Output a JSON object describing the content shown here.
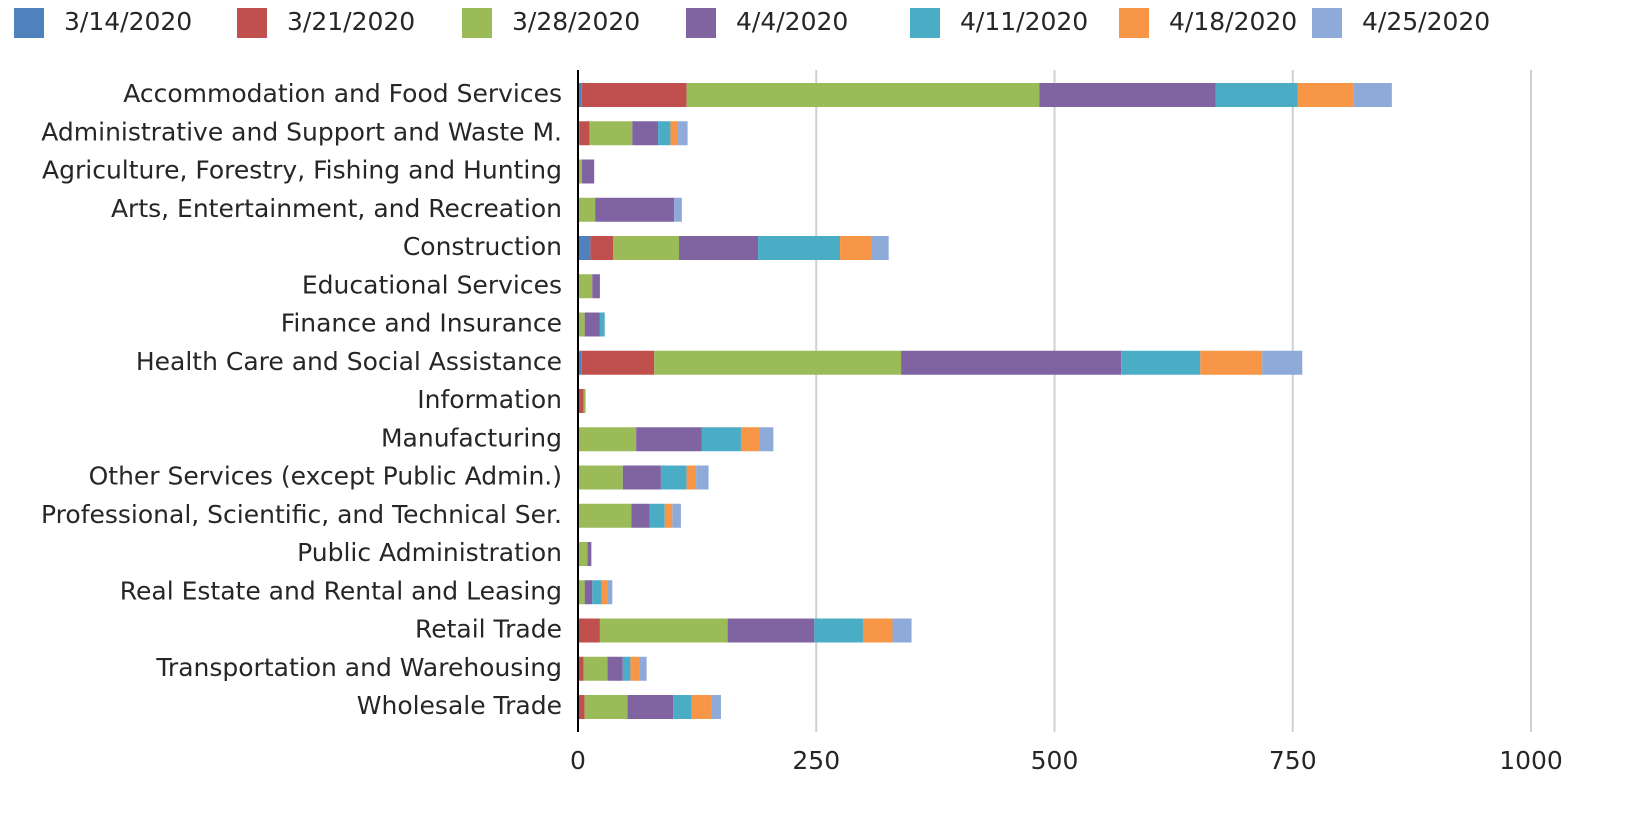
{
  "chart_data": {
    "type": "stacked_barh",
    "categories": [
      "Accommodation and Food Services",
      "Administrative and Support and Waste M.",
      "Agriculture, Forestry, Fishing and Hunting",
      "Arts, Entertainment, and Recreation",
      "Construction",
      "Educational Services",
      "Finance and Insurance",
      "Health Care and Social Assistance",
      "Information",
      "Manufacturing",
      "Other Services (except Public Admin.)",
      "Professional, Scientific, and Technical Ser.",
      "Public Administration",
      "Real Estate and Rental and Leasing",
      "Retail Trade",
      "Transportation and Warehousing",
      "Wholesale Trade"
    ],
    "series": [
      {
        "name": "3/14/2020",
        "color": "#4f81bd",
        "values": [
          4,
          2,
          0,
          0,
          13,
          0,
          0,
          4,
          0,
          0,
          0,
          0,
          0,
          0,
          0,
          0,
          0
        ]
      },
      {
        "name": "3/21/2020",
        "color": "#c0504d",
        "values": [
          110,
          10,
          0,
          0,
          24,
          0,
          0,
          76,
          6,
          0,
          0,
          0,
          0,
          0,
          23,
          6,
          7
        ]
      },
      {
        "name": "3/28/2020",
        "color": "#9bbb59",
        "values": [
          370,
          45,
          4,
          18,
          69,
          15,
          7,
          259,
          2,
          61,
          47,
          56,
          10,
          7,
          134,
          25,
          45
        ]
      },
      {
        "name": "4/4/2020",
        "color": "#8064a2",
        "values": [
          185,
          27,
          13,
          83,
          83,
          8,
          16,
          231,
          0,
          69,
          40,
          19,
          4,
          8,
          91,
          16,
          48
        ]
      },
      {
        "name": "4/11/2020",
        "color": "#4bacc6",
        "values": [
          86,
          13,
          0,
          0,
          86,
          0,
          5,
          83,
          0,
          41,
          27,
          16,
          0,
          10,
          51,
          8,
          19
        ]
      },
      {
        "name": "4/18/2020",
        "color": "#f79646",
        "values": [
          59,
          8,
          0,
          0,
          33,
          0,
          0,
          65,
          0,
          19,
          10,
          8,
          0,
          6,
          31,
          10,
          21
        ]
      },
      {
        "name": "4/25/2020",
        "color": "#8eaad8",
        "values": [
          40,
          10,
          0,
          8,
          18,
          0,
          0,
          42,
          0,
          15,
          13,
          9,
          0,
          5,
          20,
          7,
          10
        ]
      }
    ],
    "xlim": [
      0,
      1000
    ],
    "xticks": [
      0,
      250,
      500,
      750,
      1000
    ],
    "grid": true,
    "legend": "top"
  }
}
